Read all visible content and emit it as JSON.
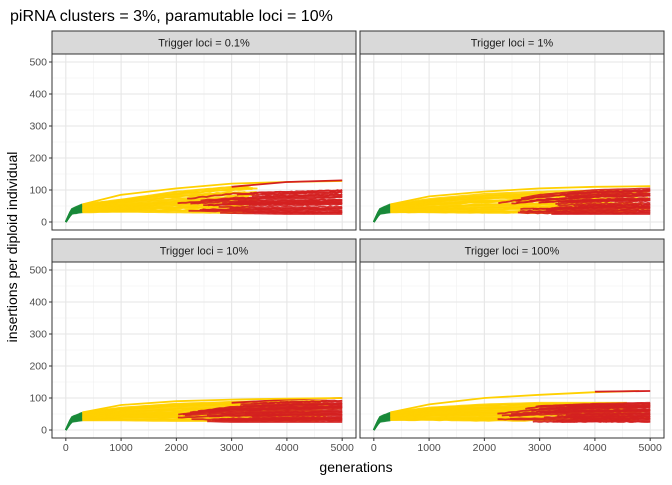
{
  "chart_data": {
    "type": "line",
    "title": "piRNA clusters = 3%, paramutable loci = 10%",
    "xlabel": "generations",
    "ylabel": "insertions per diploid individual",
    "xlim": [
      -250,
      5250
    ],
    "ylim": [
      -25,
      525
    ],
    "x_ticks": [
      0,
      1000,
      2000,
      3000,
      4000,
      5000
    ],
    "y_ticks": [
      0,
      100,
      200,
      300,
      400,
      500
    ],
    "grid": true,
    "legend": "none",
    "colors": {
      "early": "#1a8a3a",
      "stable": "#ffd000",
      "active": "#d42020"
    },
    "facets": [
      {
        "label": "Trigger loci = 0.1%",
        "bands": [
          {
            "phase": "early",
            "x": [
              0,
              100,
              200,
              300
            ],
            "low": [
              0,
              25,
              28,
              30
            ],
            "high": [
              0,
              40,
              48,
              55
            ]
          },
          {
            "phase": "stable",
            "x": [
              300,
              1000,
              2000,
              3000,
              3500
            ],
            "low": [
              30,
              32,
              30,
              28,
              28
            ],
            "high": [
              55,
              70,
              95,
              110,
              115
            ]
          },
          {
            "phase": "active",
            "x": [
              2000,
              3000,
              4000,
              5000
            ],
            "low": [
              32,
              28,
              25,
              25
            ],
            "high": [
              70,
              90,
              95,
              100
            ]
          }
        ],
        "highlights": [
          {
            "phase": "stable",
            "x": [
              300,
              1000,
              2000,
              3000,
              4000,
              5000
            ],
            "y": [
              55,
              85,
              105,
              120,
              125,
              128
            ]
          },
          {
            "phase": "active",
            "x": [
              3000,
              4000,
              5000
            ],
            "y": [
              110,
              125,
              130
            ]
          }
        ]
      },
      {
        "label": "Trigger loci = 1%",
        "bands": [
          {
            "phase": "early",
            "x": [
              0,
              100,
              200,
              300
            ],
            "low": [
              0,
              25,
              28,
              30
            ],
            "high": [
              0,
              40,
              48,
              55
            ]
          },
          {
            "phase": "stable",
            "x": [
              300,
              1000,
              2000,
              3000,
              4000,
              5000
            ],
            "low": [
              30,
              30,
              28,
              28,
              28,
              28
            ],
            "high": [
              55,
              72,
              88,
              95,
              98,
              100
            ]
          },
          {
            "phase": "active",
            "x": [
              2200,
              3000,
              4000,
              5000
            ],
            "low": [
              30,
              25,
              25,
              25
            ],
            "high": [
              60,
              85,
              100,
              105
            ]
          }
        ],
        "highlights": [
          {
            "phase": "stable",
            "x": [
              300,
              1000,
              2000,
              3000,
              4000,
              5000
            ],
            "y": [
              55,
              80,
              95,
              105,
              110,
              112
            ]
          }
        ]
      },
      {
        "label": "Trigger loci = 10%",
        "bands": [
          {
            "phase": "early",
            "x": [
              0,
              100,
              200,
              300
            ],
            "low": [
              0,
              25,
              28,
              30
            ],
            "high": [
              0,
              40,
              48,
              55
            ]
          },
          {
            "phase": "stable",
            "x": [
              300,
              1000,
              2000,
              3000,
              4000,
              5000
            ],
            "low": [
              30,
              30,
              28,
              28,
              28,
              28
            ],
            "high": [
              55,
              70,
              82,
              88,
              90,
              92
            ]
          },
          {
            "phase": "active",
            "x": [
              2000,
              3000,
              4000,
              5000
            ],
            "low": [
              30,
              25,
              25,
              25
            ],
            "high": [
              55,
              80,
              88,
              92
            ]
          }
        ],
        "highlights": [
          {
            "phase": "active",
            "x": [
              3000,
              4000,
              5000
            ],
            "y": [
              85,
              95,
              100
            ]
          },
          {
            "phase": "stable",
            "x": [
              300,
              1000,
              2000,
              3000,
              4000,
              5000
            ],
            "y": [
              55,
              78,
              90,
              95,
              98,
              100
            ]
          }
        ]
      },
      {
        "label": "Trigger loci = 100%",
        "bands": [
          {
            "phase": "early",
            "x": [
              0,
              100,
              200,
              300
            ],
            "low": [
              0,
              25,
              28,
              30
            ],
            "high": [
              0,
              40,
              48,
              55
            ]
          },
          {
            "phase": "stable",
            "x": [
              300,
              1000,
              2000,
              3000,
              4000,
              5000
            ],
            "low": [
              30,
              30,
              28,
              28,
              28,
              28
            ],
            "high": [
              55,
              70,
              80,
              85,
              85,
              85
            ]
          },
          {
            "phase": "active",
            "x": [
              2200,
              3000,
              4000,
              5000
            ],
            "low": [
              30,
              25,
              25,
              25
            ],
            "high": [
              55,
              75,
              82,
              85
            ]
          }
        ],
        "highlights": [
          {
            "phase": "stable",
            "x": [
              300,
              1000,
              2000,
              3000,
              4000,
              4800
            ],
            "y": [
              55,
              80,
              100,
              110,
              118,
              122
            ]
          },
          {
            "phase": "active",
            "x": [
              4000,
              5000
            ],
            "y": [
              120,
              122
            ]
          }
        ]
      }
    ]
  }
}
